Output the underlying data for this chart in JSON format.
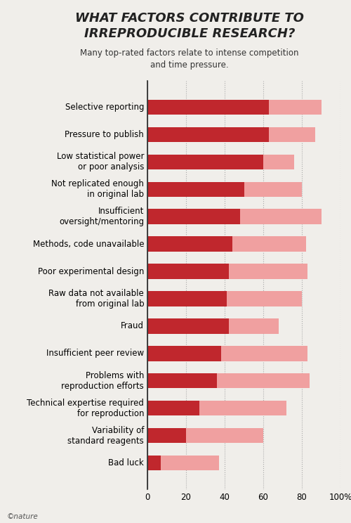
{
  "title": "WHAT FACTORS CONTRIBUTE TO\nIRREPRODUCIBLE RESEARCH?",
  "subtitle": "Many top-rated factors relate to intense competition\nand time pressure.",
  "categories": [
    "Selective reporting",
    "Pressure to publish",
    "Low statistical power\nor poor analysis",
    "Not replicated enough\nin original lab",
    "Insufficient\noversight/mentoring",
    "Methods, code unavailable",
    "Poor experimental design",
    "Raw data not available\nfrom original lab",
    "Fraud",
    "Insufficient peer review",
    "Problems with\nreproduction efforts",
    "Technical expertise required\nfor reproduction",
    "Variability of\nstandard reagents",
    "Bad luck"
  ],
  "always_values": [
    63,
    63,
    60,
    50,
    48,
    44,
    42,
    41,
    42,
    38,
    36,
    27,
    20,
    7
  ],
  "sometimes_values": [
    90,
    87,
    76,
    80,
    90,
    82,
    83,
    80,
    68,
    83,
    84,
    72,
    60,
    37
  ],
  "color_always": "#c0272d",
  "color_sometimes": "#f0a0a0",
  "background_color": "#f0eeea",
  "grid_color": "#aaaaaa",
  "footer": "©nature",
  "xlim": [
    0,
    100
  ],
  "xticks": [
    0,
    20,
    40,
    60,
    80,
    100
  ],
  "xtick_labels": [
    "0",
    "20",
    "40",
    "60",
    "80",
    "100%"
  ]
}
